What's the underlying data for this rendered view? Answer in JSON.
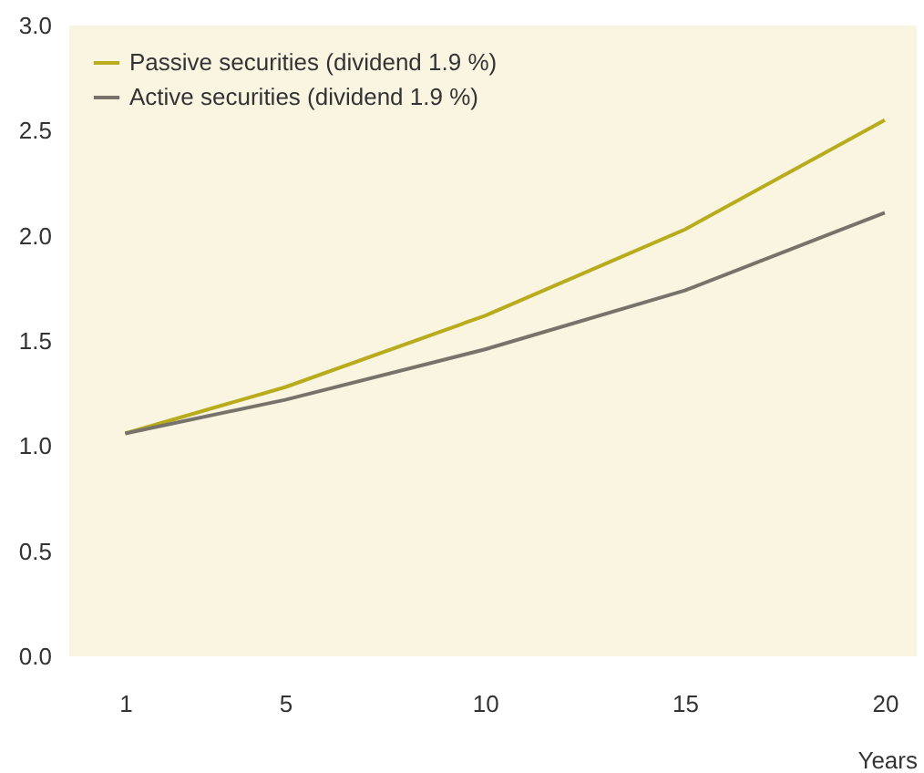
{
  "chart_data": {
    "type": "line",
    "xlabel": "Years",
    "x": [
      1,
      5,
      10,
      15,
      20
    ],
    "series": [
      {
        "name": "Passive securities (dividend 1.9 %)",
        "color": "#b8ab1c",
        "values": [
          1.06,
          1.28,
          1.62,
          2.03,
          2.55
        ]
      },
      {
        "name": "Active securities (dividend 1.9 %)",
        "color": "#77736b",
        "values": [
          1.06,
          1.22,
          1.46,
          1.74,
          2.11
        ]
      }
    ],
    "xlim": [
      -0.4,
      20.8
    ],
    "xticks": [
      1,
      5,
      10,
      15,
      20
    ],
    "ylim": [
      0,
      3
    ],
    "yticks": [
      {
        "value": 0,
        "label": "0.0"
      },
      0.5,
      {
        "value": 1,
        "label": "1.0"
      },
      1.5,
      {
        "value": 2,
        "label": "2.0"
      },
      2.5,
      {
        "value": 3,
        "label": "3.0"
      }
    ],
    "grid": false,
    "legend": "top left",
    "marker": "none",
    "line_style": "solid"
  }
}
